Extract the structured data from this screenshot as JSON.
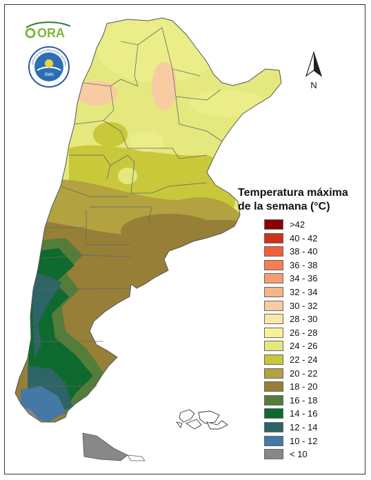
{
  "logos": {
    "ora_text": "ORA",
    "smn_ring_text": "SERVICIO METEOROLOGICO NACIONAL",
    "smn_bottom_text": "ARGENTINA",
    "smn_center_text": "SMN"
  },
  "north_arrow": {
    "label": "N"
  },
  "legend": {
    "title_line1": "Temperatura máxima",
    "title_line2": "de la semana (°C)",
    "items": [
      {
        "label": ">42",
        "color": "#8b0000"
      },
      {
        "label": "40 - 42",
        "color": "#cc3318"
      },
      {
        "label": "38 - 40",
        "color": "#f0603a"
      },
      {
        "label": "36 - 38",
        "color": "#f47f50"
      },
      {
        "label": "34 - 36",
        "color": "#f59c70"
      },
      {
        "label": "32 - 34",
        "color": "#f6b488"
      },
      {
        "label": "30 - 32",
        "color": "#f8cca2"
      },
      {
        "label": "28 - 30",
        "color": "#fbe8a8"
      },
      {
        "label": "26 - 28",
        "color": "#f7f29a"
      },
      {
        "label": "24 - 26",
        "color": "#e4e87e"
      },
      {
        "label": "22 - 24",
        "color": "#c8c83a"
      },
      {
        "label": "20 - 22",
        "color": "#b2a240"
      },
      {
        "label": "18 - 20",
        "color": "#977f38"
      },
      {
        "label": "16 - 18",
        "color": "#547d3a"
      },
      {
        "label": "14 - 16",
        "color": "#0e6a2e"
      },
      {
        "label": "12 - 14",
        "color": "#2e6466"
      },
      {
        "label": "10 - 12",
        "color": "#4478a6"
      },
      {
        "label": "< 10",
        "color": "#888888"
      }
    ]
  }
}
